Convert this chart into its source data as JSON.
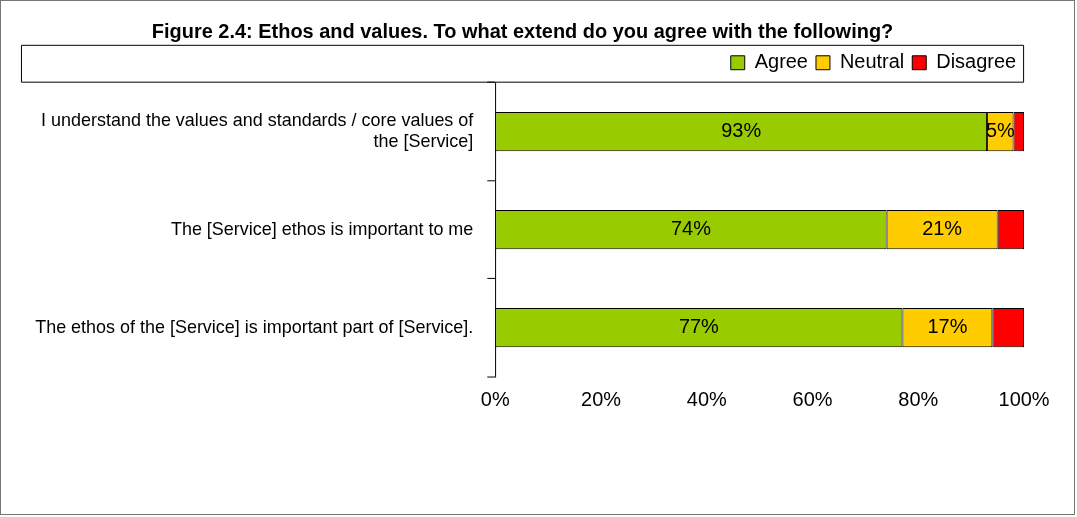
{
  "chart_data": {
    "type": "bar",
    "orientation": "horizontal",
    "stacked": true,
    "title": "Figure 2.4: Ethos and values. To what extend do you agree with the following?",
    "categories": [
      "I understand the values and standards / core values of the [Service]",
      "The [Service] ethos is important to me",
      "The ethos of the [Service] is important part of [Service]."
    ],
    "series": [
      {
        "name": "Agree",
        "color": "#99cc00",
        "values": [
          93,
          74,
          77
        ],
        "value_labels": [
          "93%",
          "74%",
          "77%"
        ]
      },
      {
        "name": "Neutral",
        "color": "#ffcc00",
        "values": [
          5,
          21,
          17
        ],
        "value_labels": [
          "5%",
          "21%",
          "17%"
        ]
      },
      {
        "name": "Disagree",
        "color": "#ff0000",
        "values": [
          2,
          5,
          6
        ],
        "value_labels": [
          null,
          null,
          null
        ]
      }
    ],
    "xlim": [
      0,
      100
    ],
    "xticks": [
      {
        "value": 0,
        "label": "0%"
      },
      {
        "value": 20,
        "label": "20%"
      },
      {
        "value": 40,
        "label": "40%"
      },
      {
        "value": 60,
        "label": "60%"
      },
      {
        "value": 80,
        "label": "80%"
      },
      {
        "value": 100,
        "label": "100%"
      }
    ],
    "grid": false,
    "legend": "top right"
  }
}
